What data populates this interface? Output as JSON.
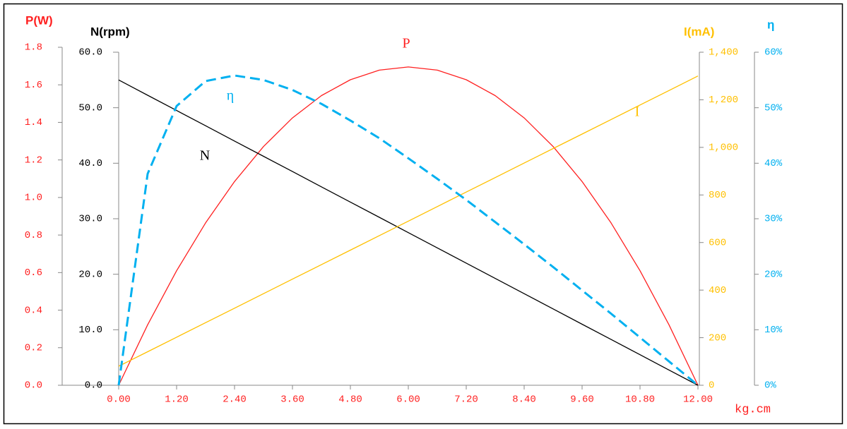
{
  "chart_data": {
    "type": "line",
    "xlabel": "kg.cm",
    "ylabel": "P(W)",
    "y2label": "N(rpm)",
    "y3label": "I(mA)",
    "y4label": "η",
    "xlim": [
      0,
      12
    ],
    "xticks": [
      {
        "value": 0,
        "label": "0.00"
      },
      {
        "value": 1.2,
        "label": "1.20"
      },
      {
        "value": 2.4,
        "label": "2.40"
      },
      {
        "value": 3.6,
        "label": "3.60"
      },
      {
        "value": 4.8,
        "label": "4.80"
      },
      {
        "value": 6,
        "label": "6.00"
      },
      {
        "value": 7.2,
        "label": "7.20"
      },
      {
        "value": 8.4,
        "label": "8.40"
      },
      {
        "value": 9.6,
        "label": "9.60"
      },
      {
        "value": 10.8,
        "label": "10.80"
      },
      {
        "value": 12,
        "label": "12.00"
      }
    ],
    "ylim": [
      0,
      1.8
    ],
    "yticks": [
      {
        "value": 0,
        "label": "0.0"
      },
      0.2,
      0.4,
      0.6,
      0.8,
      {
        "value": 1,
        "label": "1.0"
      },
      1.2,
      1.4,
      1.6,
      1.8
    ],
    "y2lim": [
      0,
      60
    ],
    "y2ticks": [
      {
        "value": 0,
        "label": "0.0"
      },
      {
        "value": 10,
        "label": "10.0"
      },
      {
        "value": 20,
        "label": "20.0"
      },
      {
        "value": 30,
        "label": "30.0"
      },
      {
        "value": 40,
        "label": "40.0"
      },
      {
        "value": 50,
        "label": "50.0"
      },
      {
        "value": 60,
        "label": "60.0"
      }
    ],
    "y3lim": [
      0,
      1400
    ],
    "y3ticks": [
      0,
      200,
      400,
      600,
      800,
      {
        "value": 1000,
        "label": "1,000"
      },
      {
        "value": 1200,
        "label": "1,200"
      },
      {
        "value": 1400,
        "label": "1,400"
      }
    ],
    "y4lim": [
      0,
      60
    ],
    "y4ticks": [
      {
        "value": 0,
        "label": "0%"
      },
      {
        "value": 10,
        "label": "10%"
      },
      {
        "value": 20,
        "label": "20%"
      },
      {
        "value": 30,
        "label": "30%"
      },
      {
        "value": 40,
        "label": "40%"
      },
      {
        "value": 50,
        "label": "50%"
      },
      {
        "value": 60,
        "label": "60%"
      }
    ],
    "x": [
      0,
      0.6,
      1.2,
      1.8,
      2.4,
      3.0,
      3.6,
      4.2,
      4.8,
      5.4,
      6.0,
      6.6,
      7.2,
      7.8,
      8.4,
      9.0,
      9.6,
      10.2,
      10.8,
      11.4,
      12
    ],
    "series": [
      {
        "name": "P",
        "color": "#ff2020",
        "axis": "y",
        "values": [
          0,
          0.3221,
          0.61,
          0.8645,
          1.0848,
          1.2713,
          1.4238,
          1.5425,
          1.6272,
          1.6781,
          1.695,
          1.6781,
          1.6272,
          1.5425,
          1.4238,
          1.2713,
          1.0848,
          0.8645,
          0.61,
          0.3221,
          0
        ]
      },
      {
        "name": "N",
        "color": "#000000",
        "axis": "y2",
        "values": [
          55,
          52.25,
          49.5,
          46.75,
          44,
          41.25,
          38.5,
          35.75,
          33,
          30.25,
          27.5,
          24.75,
          22,
          19.25,
          16.5,
          13.75,
          11,
          8.25,
          5.5,
          2.75,
          0
        ]
      },
      {
        "name": "I",
        "color": "#ffc000",
        "axis": "y3",
        "values": [
          80,
          141,
          202,
          263,
          324,
          385,
          446,
          507,
          568,
          629,
          690,
          751,
          812,
          873,
          934,
          995,
          1056,
          1117,
          1178,
          1239,
          1300
        ]
      },
      {
        "name": "η",
        "color": "#00b0f0",
        "axis": "y4",
        "values": [
          0,
          38.1,
          50.3,
          54.8,
          55.8,
          55.0,
          53.2,
          50.7,
          47.7,
          44.5,
          40.9,
          37.2,
          33.4,
          29.4,
          25.4,
          21.3,
          17.1,
          12.9,
          8.6,
          4.3,
          0
        ]
      }
    ]
  }
}
